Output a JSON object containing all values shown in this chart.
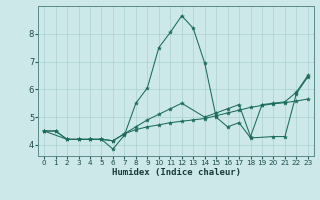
{
  "xlabel": "Humidex (Indice chaleur)",
  "bg_color": "#cce8e8",
  "grid_color": "#aad0d0",
  "line_color": "#1a6b5a",
  "xlim": [
    -0.5,
    23.5
  ],
  "ylim": [
    3.6,
    9.0
  ],
  "xticks": [
    0,
    1,
    2,
    3,
    4,
    5,
    6,
    7,
    8,
    9,
    10,
    11,
    12,
    13,
    14,
    15,
    16,
    17,
    18,
    19,
    20,
    21,
    22,
    23
  ],
  "yticks": [
    4,
    5,
    6,
    7,
    8
  ],
  "line1_x": [
    0,
    1,
    2,
    3,
    4,
    5,
    6,
    7,
    8,
    9,
    10,
    11,
    12,
    13,
    14,
    15,
    16,
    17,
    18,
    19,
    20,
    21,
    22,
    23
  ],
  "line1_y": [
    4.5,
    4.5,
    4.2,
    4.2,
    4.2,
    4.2,
    4.15,
    4.4,
    4.55,
    4.65,
    4.72,
    4.8,
    4.85,
    4.9,
    4.95,
    5.05,
    5.15,
    5.25,
    5.35,
    5.42,
    5.48,
    5.52,
    5.58,
    5.65
  ],
  "line2_x": [
    0,
    1,
    2,
    3,
    4,
    5,
    6,
    7,
    8,
    9,
    10,
    11,
    12,
    13,
    14,
    15,
    16,
    17,
    18,
    20,
    21,
    22,
    23
  ],
  "line2_y": [
    4.5,
    4.5,
    4.2,
    4.2,
    4.2,
    4.2,
    3.85,
    4.35,
    5.5,
    6.05,
    7.5,
    8.05,
    8.65,
    8.2,
    6.95,
    5.0,
    4.65,
    4.8,
    4.25,
    4.3,
    4.3,
    5.85,
    6.45
  ],
  "line3_x": [
    0,
    2,
    3,
    4,
    5,
    6,
    7,
    8,
    9,
    10,
    11,
    12,
    14,
    15,
    16,
    17,
    18,
    19,
    20,
    21,
    22,
    23
  ],
  "line3_y": [
    4.5,
    4.2,
    4.2,
    4.2,
    4.2,
    4.15,
    4.4,
    4.65,
    4.9,
    5.1,
    5.3,
    5.5,
    5.0,
    5.15,
    5.3,
    5.45,
    4.3,
    5.45,
    5.5,
    5.55,
    5.9,
    6.5
  ]
}
